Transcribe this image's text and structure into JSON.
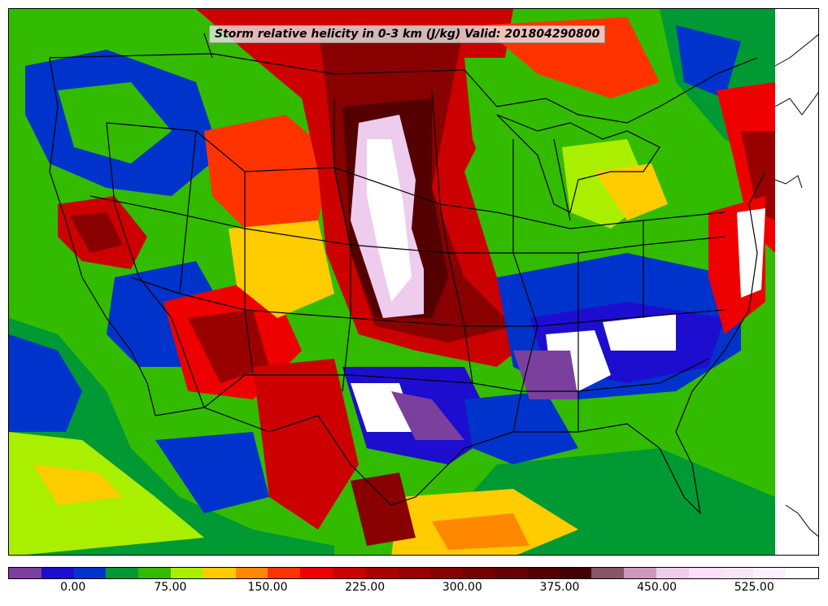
{
  "map": {
    "title": "Storm relative helicity in 0-3 km (J/kg) Valid: 201804290800",
    "region": "Continental United States",
    "basemap_lines": [
      "state-borders",
      "country-borders",
      "coastlines",
      "great-lakes"
    ]
  },
  "colorbar": {
    "min": -50,
    "step": 25,
    "colors": [
      "#7b3f9e",
      "#1d0ecf",
      "#0033cc",
      "#009933",
      "#33bb00",
      "#aaee00",
      "#ffcc00",
      "#ff8800",
      "#ff3300",
      "#ee0000",
      "#cc0000",
      "#aa0000",
      "#990000",
      "#880000",
      "#770000",
      "#660000",
      "#550000",
      "#440000",
      "#885566",
      "#cc99bb",
      "#eeccee",
      "#ffddff",
      "#f6e6f6",
      "#ffeeff",
      "#ffffff"
    ],
    "tick_labels": [
      {
        "value": 0,
        "label": "0.00"
      },
      {
        "value": 75,
        "label": "75.00"
      },
      {
        "value": 150,
        "label": "150.00"
      },
      {
        "value": 225,
        "label": "225.00"
      },
      {
        "value": 300,
        "label": "300.00"
      },
      {
        "value": 375,
        "label": "375.00"
      },
      {
        "value": 450,
        "label": "450.00"
      },
      {
        "value": 525,
        "label": "525.00"
      }
    ]
  }
}
